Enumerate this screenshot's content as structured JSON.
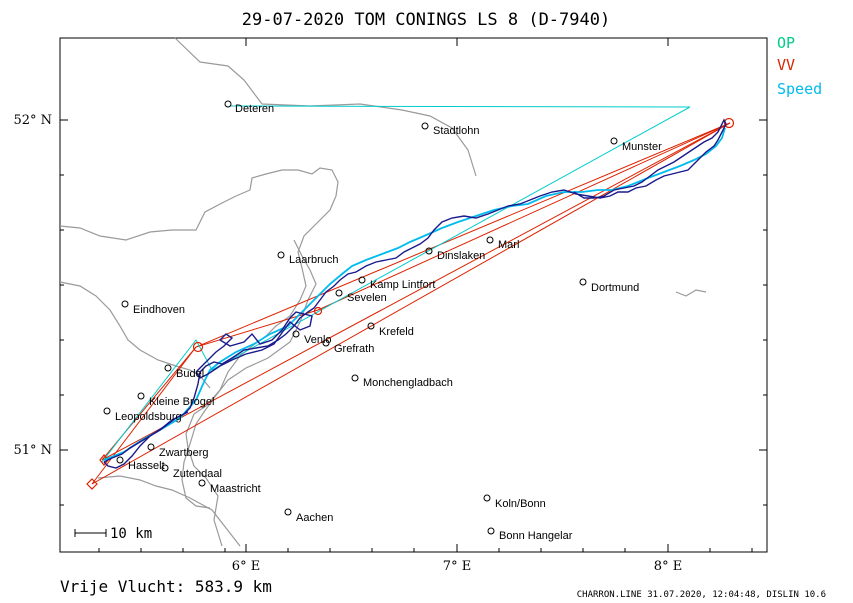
{
  "header": {
    "title": "29-07-2020   TOM CONINGS   LS 8 (D-7940)"
  },
  "legend": [
    {
      "label": "OP",
      "color": "#00cc88"
    },
    {
      "label": "VV",
      "color": "#dd2200"
    },
    {
      "label": "Speed",
      "color": "#00bbee"
    }
  ],
  "axes": {
    "y_ticks": [
      "52° N",
      "51° N"
    ],
    "x_ticks": [
      "6° E",
      "7° E",
      "8° E"
    ]
  },
  "scale_bar": "10  km",
  "footer": {
    "distance": "Vrije Vlucht:  583.9 km",
    "credit": "CHARRON.LINE 31.07.2020, 12:04:48, DISLIN 10.6"
  },
  "cities": [
    {
      "id": "deteren",
      "name": "Deteren"
    },
    {
      "id": "stadtlohn",
      "name": "Stadtlohn"
    },
    {
      "id": "munster",
      "name": "Munster"
    },
    {
      "id": "dinslaken",
      "name": "Dinslaken"
    },
    {
      "id": "marl",
      "name": "Marl"
    },
    {
      "id": "laarbruch",
      "name": "Laarbruch"
    },
    {
      "id": "kamp-lintfort",
      "name": "Kamp Lintfort"
    },
    {
      "id": "sevelen",
      "name": "Sevelen"
    },
    {
      "id": "dortmund",
      "name": "Dortmund"
    },
    {
      "id": "eindhoven",
      "name": "Eindhoven"
    },
    {
      "id": "krefeld",
      "name": "Krefeld"
    },
    {
      "id": "venlo",
      "name": "Venlo"
    },
    {
      "id": "grefrath",
      "name": "Grefrath"
    },
    {
      "id": "budel",
      "name": "Budel"
    },
    {
      "id": "monchengladbach",
      "name": "Monchengladbach"
    },
    {
      "id": "kleine-brogel",
      "name": "Kleine Brogel"
    },
    {
      "id": "leopoldsburg",
      "name": "Leopoldsburg"
    },
    {
      "id": "zwartberg",
      "name": "Zwartberg"
    },
    {
      "id": "hasselt",
      "name": "Hasselt"
    },
    {
      "id": "zutendaal",
      "name": "Zutendaal"
    },
    {
      "id": "maastricht",
      "name": "Maastricht"
    },
    {
      "id": "koln-bonn",
      "name": "Koln/Bonn"
    },
    {
      "id": "aachen",
      "name": "Aachen"
    },
    {
      "id": "bonn-hangelar",
      "name": "Bonn Hangelar"
    }
  ]
}
